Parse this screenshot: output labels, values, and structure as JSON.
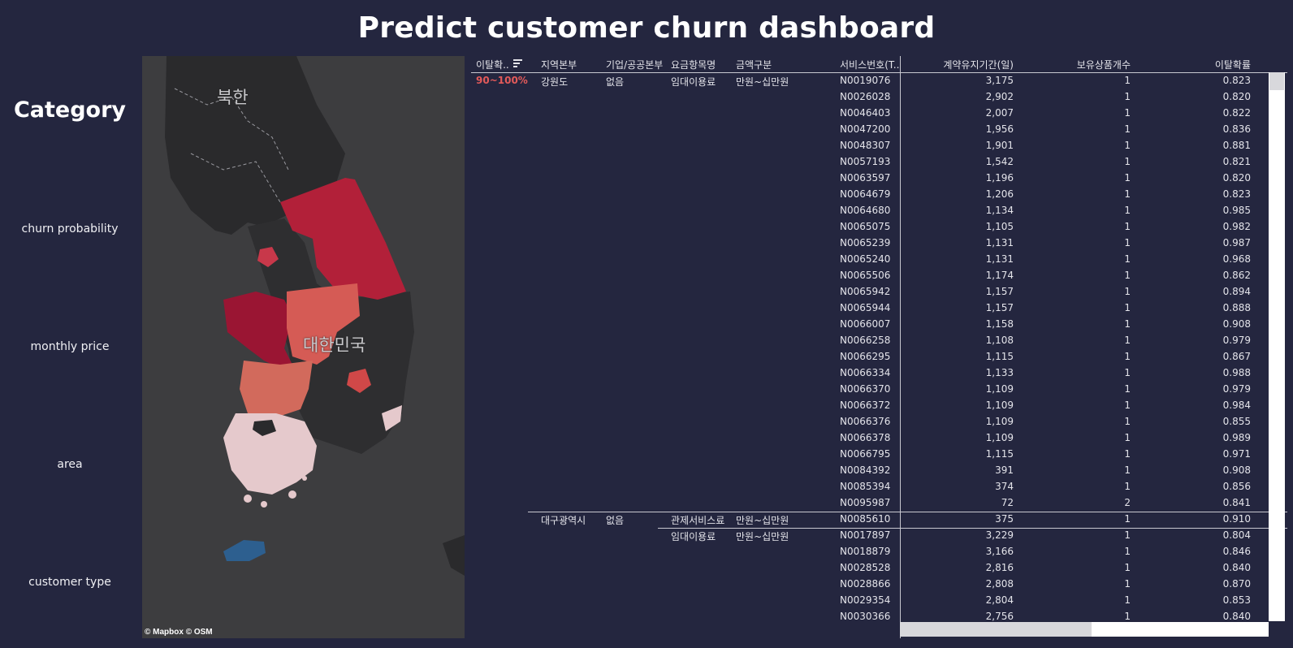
{
  "title": "Predict customer churn dashboard",
  "category": {
    "heading": "Category",
    "filters": [
      "churn probability",
      "monthly price",
      "area",
      "customer type"
    ]
  },
  "map": {
    "labels": {
      "north": "북한",
      "south": "대한민국"
    },
    "attribution": "© Mapbox  © OSM",
    "colors": {
      "background": "#3d3d3f",
      "gangwon": "#b22039",
      "gyeonggi": "#9a1533",
      "chungbuk": "#d55b55",
      "jeonbuk": "#d26a5c",
      "jeonnam": "#e5c9cc",
      "jeju": "#2d5f8f",
      "other": "#2c2c2e"
    }
  },
  "table": {
    "headers": {
      "band": "이탈확..",
      "region": "지역본부",
      "corp": "기업/공공본부",
      "item": "요금항목명",
      "amount": "금액구분",
      "service": "서비스번호(T..",
      "days": "계약유지기간(일)",
      "products": "보유상품개수",
      "prob": "이탈확률"
    },
    "band": "90~100%",
    "groups": [
      {
        "region": "강원도",
        "corp": "없음",
        "items": [
          {
            "item": "임대이용료",
            "amount": "만원~십만원",
            "rows": [
              {
                "service": "N0019076",
                "days": "3,175",
                "products": "1",
                "prob": "0.823"
              },
              {
                "service": "N0026028",
                "days": "2,902",
                "products": "1",
                "prob": "0.820"
              },
              {
                "service": "N0046403",
                "days": "2,007",
                "products": "1",
                "prob": "0.822"
              },
              {
                "service": "N0047200",
                "days": "1,956",
                "products": "1",
                "prob": "0.836"
              },
              {
                "service": "N0048307",
                "days": "1,901",
                "products": "1",
                "prob": "0.881"
              },
              {
                "service": "N0057193",
                "days": "1,542",
                "products": "1",
                "prob": "0.821"
              },
              {
                "service": "N0063597",
                "days": "1,196",
                "products": "1",
                "prob": "0.820"
              },
              {
                "service": "N0064679",
                "days": "1,206",
                "products": "1",
                "prob": "0.823"
              },
              {
                "service": "N0064680",
                "days": "1,134",
                "products": "1",
                "prob": "0.985"
              },
              {
                "service": "N0065075",
                "days": "1,105",
                "products": "1",
                "prob": "0.982"
              },
              {
                "service": "N0065239",
                "days": "1,131",
                "products": "1",
                "prob": "0.987"
              },
              {
                "service": "N0065240",
                "days": "1,131",
                "products": "1",
                "prob": "0.968"
              },
              {
                "service": "N0065506",
                "days": "1,174",
                "products": "1",
                "prob": "0.862"
              },
              {
                "service": "N0065942",
                "days": "1,157",
                "products": "1",
                "prob": "0.894"
              },
              {
                "service": "N0065944",
                "days": "1,157",
                "products": "1",
                "prob": "0.888"
              },
              {
                "service": "N0066007",
                "days": "1,158",
                "products": "1",
                "prob": "0.908"
              },
              {
                "service": "N0066258",
                "days": "1,108",
                "products": "1",
                "prob": "0.979"
              },
              {
                "service": "N0066295",
                "days": "1,115",
                "products": "1",
                "prob": "0.867"
              },
              {
                "service": "N0066334",
                "days": "1,133",
                "products": "1",
                "prob": "0.988"
              },
              {
                "service": "N0066370",
                "days": "1,109",
                "products": "1",
                "prob": "0.979"
              },
              {
                "service": "N0066372",
                "days": "1,109",
                "products": "1",
                "prob": "0.984"
              },
              {
                "service": "N0066376",
                "days": "1,109",
                "products": "1",
                "prob": "0.855"
              },
              {
                "service": "N0066378",
                "days": "1,109",
                "products": "1",
                "prob": "0.989"
              },
              {
                "service": "N0066795",
                "days": "1,115",
                "products": "1",
                "prob": "0.971"
              },
              {
                "service": "N0084392",
                "days": "391",
                "products": "1",
                "prob": "0.908"
              },
              {
                "service": "N0085394",
                "days": "374",
                "products": "1",
                "prob": "0.856"
              },
              {
                "service": "N0095987",
                "days": "72",
                "products": "2",
                "prob": "0.841"
              }
            ]
          }
        ]
      },
      {
        "region": "대구광역시",
        "corp": "없음",
        "items": [
          {
            "item": "관제서비스료",
            "amount": "만원~십만원",
            "rows": [
              {
                "service": "N0085610",
                "days": "375",
                "products": "1",
                "prob": "0.910"
              }
            ]
          },
          {
            "item": "임대이용료",
            "amount": "만원~십만원",
            "rows": [
              {
                "service": "N0017897",
                "days": "3,229",
                "products": "1",
                "prob": "0.804"
              },
              {
                "service": "N0018879",
                "days": "3,166",
                "products": "1",
                "prob": "0.846"
              },
              {
                "service": "N0028528",
                "days": "2,816",
                "products": "1",
                "prob": "0.840"
              },
              {
                "service": "N0028866",
                "days": "2,808",
                "products": "1",
                "prob": "0.870"
              },
              {
                "service": "N0029354",
                "days": "2,804",
                "products": "1",
                "prob": "0.853"
              },
              {
                "service": "N0030366",
                "days": "2,756",
                "products": "1",
                "prob": "0.840"
              }
            ]
          }
        ]
      }
    ]
  }
}
